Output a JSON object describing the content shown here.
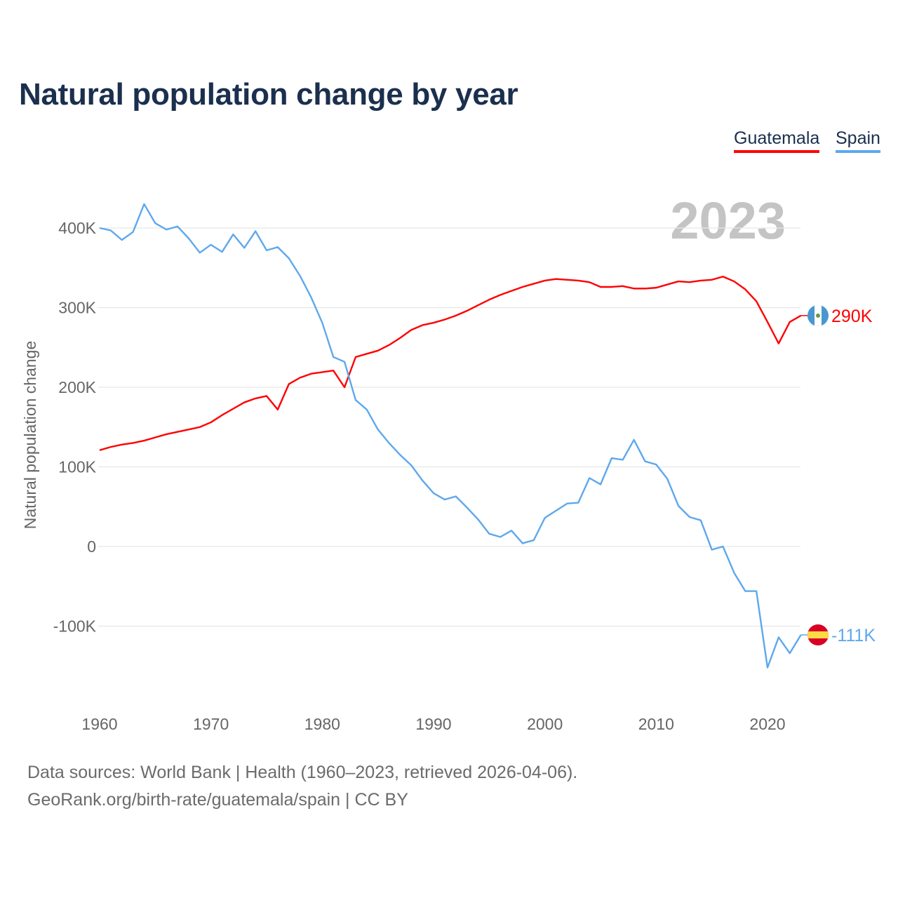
{
  "title": "Natural population change by year",
  "legend": [
    {
      "name": "Guatemala",
      "color": "#ff0000"
    },
    {
      "name": "Spain",
      "color": "#5ea8ec"
    }
  ],
  "year_label": "2023",
  "footer": {
    "line1": "Data sources: World Bank | Health (1960–2023, retrieved 2026-04-06).",
    "line2": "GeoRank.org/birth-rate/guatemala/spain | CC BY"
  },
  "chart_data": {
    "type": "line",
    "title": "Natural population change by year",
    "xlabel": "",
    "ylabel": "Natural population change",
    "xlim": [
      1960,
      2023
    ],
    "ylim": [
      -200000,
      430000
    ],
    "x_ticks": [
      1960,
      1970,
      1980,
      1990,
      2000,
      2010,
      2020
    ],
    "x_tick_labels": [
      "1960",
      "1970",
      "1980",
      "1990",
      "2000",
      "2010",
      "2020"
    ],
    "y_ticks": [
      -100000,
      0,
      100000,
      200000,
      300000,
      400000
    ],
    "y_tick_labels": [
      "-100K",
      "0",
      "100K",
      "200K",
      "300K",
      "400K"
    ],
    "grid": true,
    "legend_position": "top-right",
    "x": [
      1960,
      1961,
      1962,
      1963,
      1964,
      1965,
      1966,
      1967,
      1968,
      1969,
      1970,
      1971,
      1972,
      1973,
      1974,
      1975,
      1976,
      1977,
      1978,
      1979,
      1980,
      1981,
      1982,
      1983,
      1984,
      1985,
      1986,
      1987,
      1988,
      1989,
      1990,
      1991,
      1992,
      1993,
      1994,
      1995,
      1996,
      1997,
      1998,
      1999,
      2000,
      2001,
      2002,
      2003,
      2004,
      2005,
      2006,
      2007,
      2008,
      2009,
      2010,
      2011,
      2012,
      2013,
      2014,
      2015,
      2016,
      2017,
      2018,
      2019,
      2020,
      2021,
      2022,
      2023
    ],
    "series": [
      {
        "name": "Guatemala",
        "color": "#ff0000",
        "end_label": "290K",
        "values": [
          121000,
          125000,
          128000,
          130000,
          133000,
          137000,
          141000,
          144000,
          147000,
          150000,
          156000,
          165000,
          173000,
          181000,
          186000,
          189000,
          172000,
          204000,
          212000,
          217000,
          219000,
          221000,
          200000,
          238000,
          242000,
          246000,
          253000,
          262000,
          272000,
          278000,
          281000,
          285000,
          290000,
          296000,
          303000,
          310000,
          316000,
          321000,
          326000,
          330000,
          334000,
          336000,
          335000,
          334000,
          332000,
          326000,
          326000,
          327000,
          324000,
          324000,
          325000,
          329000,
          333000,
          332000,
          334000,
          335000,
          339000,
          333000,
          323000,
          308000,
          282000,
          255000,
          282000,
          290000
        ]
      },
      {
        "name": "Spain",
        "color": "#5ea8ec",
        "end_label": "-111K",
        "values": [
          400000,
          397000,
          385000,
          395000,
          430000,
          406000,
          398000,
          402000,
          387000,
          369000,
          379000,
          370000,
          392000,
          375000,
          396000,
          372000,
          376000,
          362000,
          340000,
          313000,
          281000,
          238000,
          232000,
          184000,
          172000,
          147000,
          130000,
          115000,
          102000,
          83000,
          67000,
          59000,
          63000,
          49000,
          34000,
          16000,
          12000,
          20000,
          4000,
          8000,
          36000,
          45000,
          54000,
          55000,
          86000,
          78000,
          111000,
          109000,
          134000,
          107000,
          103000,
          85000,
          51000,
          37000,
          33000,
          -4000,
          0,
          -33000,
          -56000,
          -56000,
          -152000,
          -114000,
          -134000,
          -111000
        ]
      }
    ]
  }
}
